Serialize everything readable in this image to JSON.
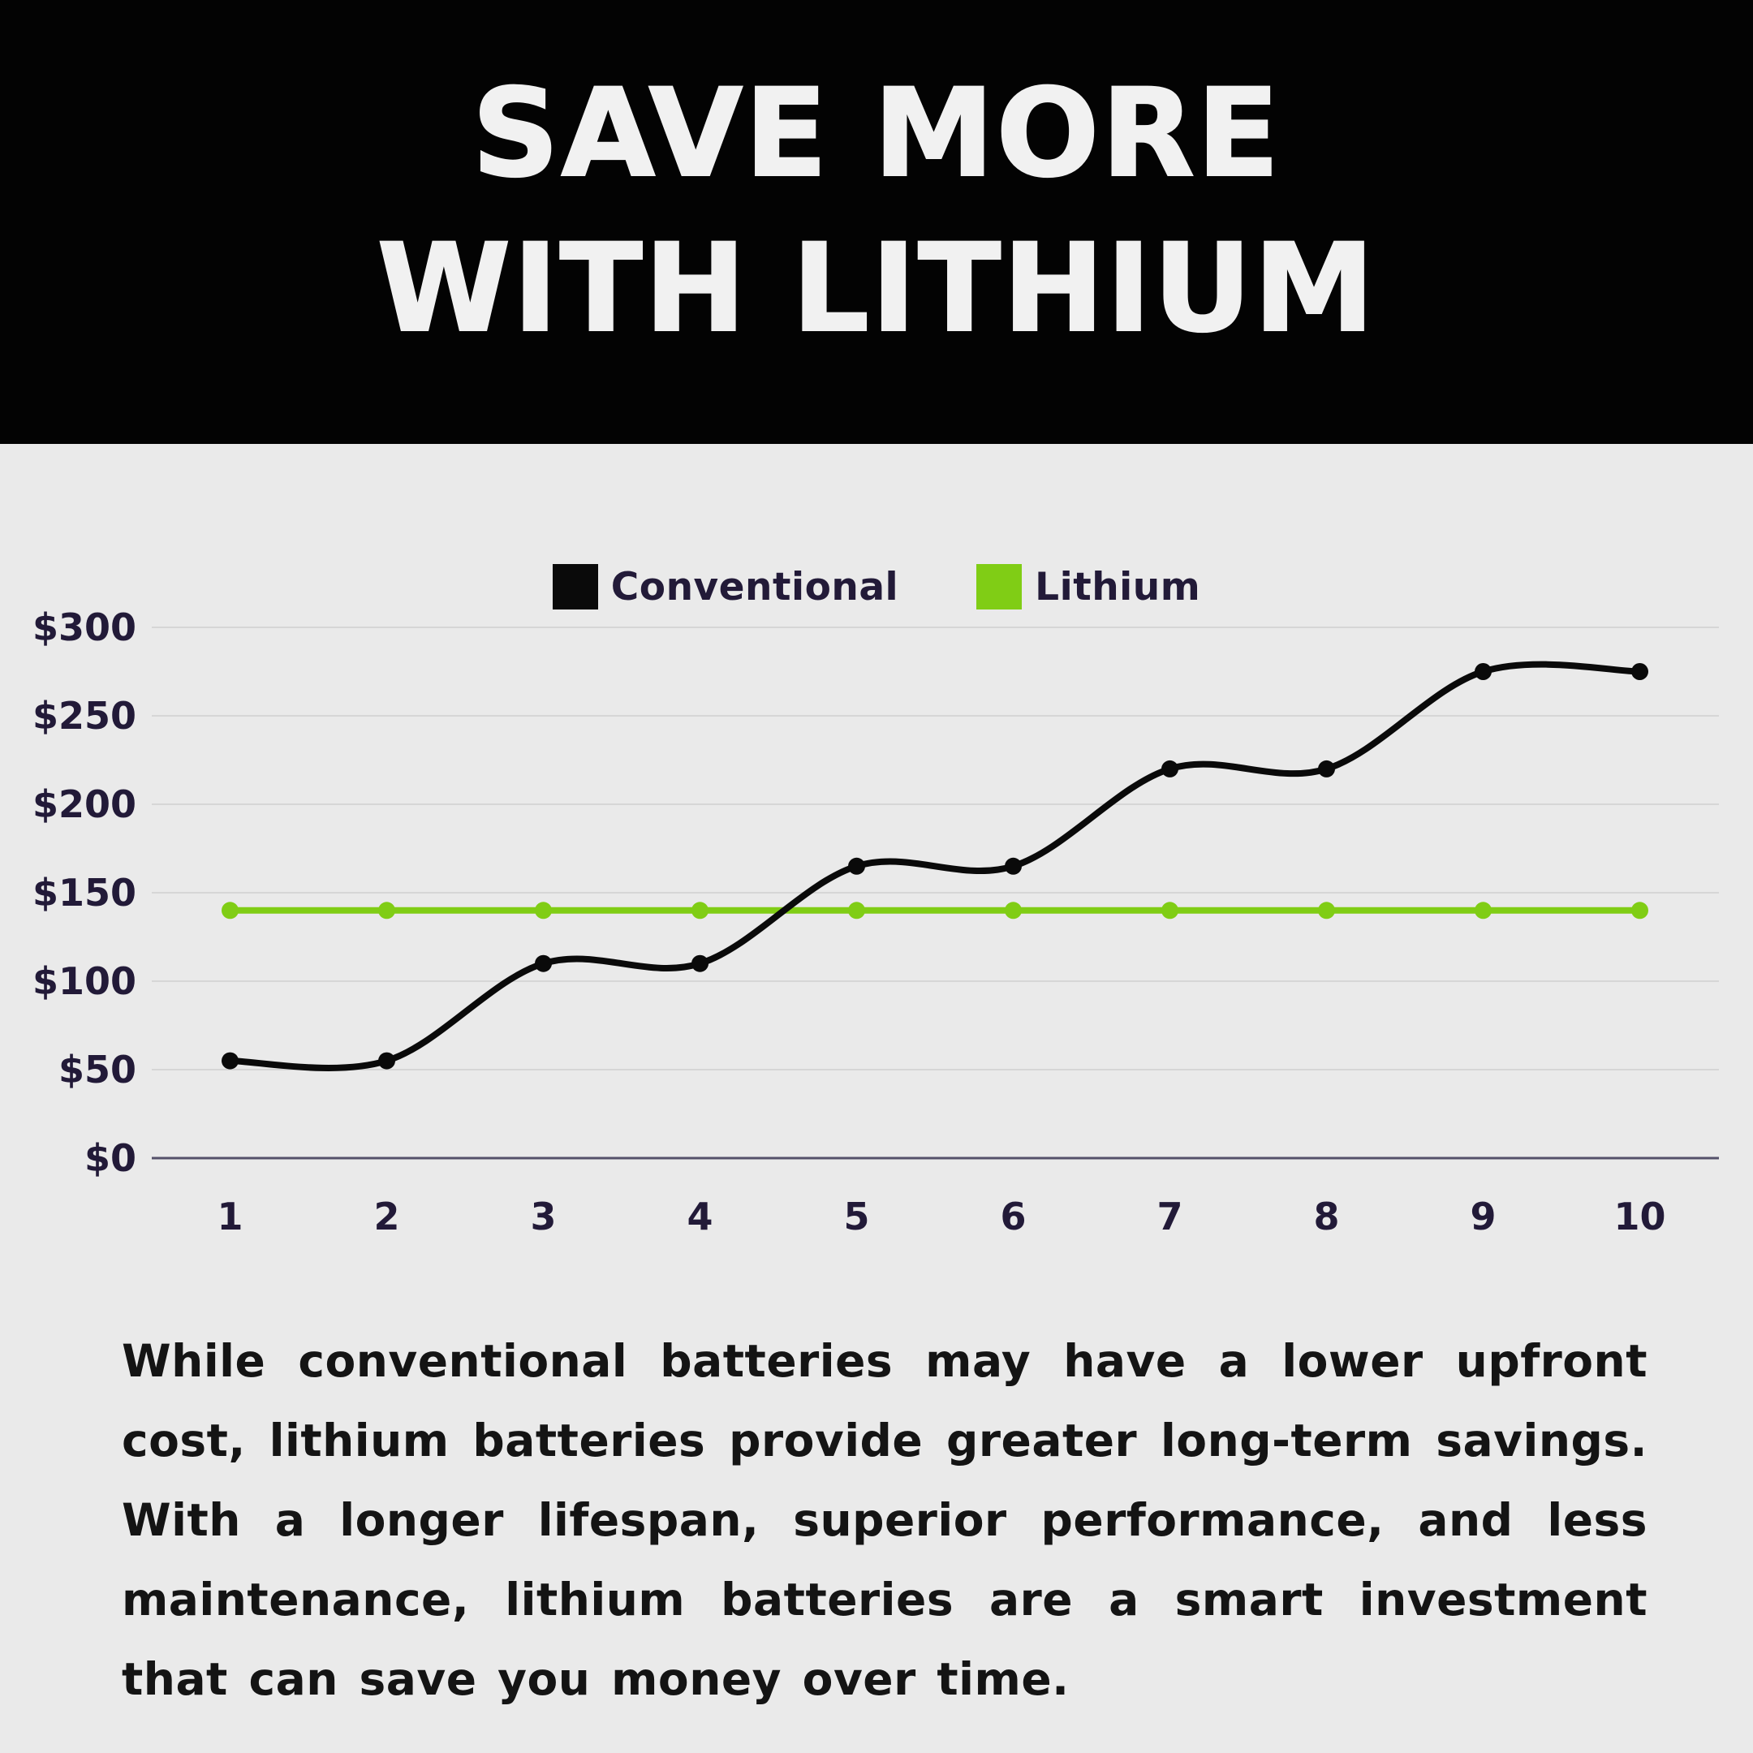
{
  "page": {
    "colors": {
      "background": "#EAEAEA",
      "header_bg": "#030303",
      "title": "#F1F1F1",
      "axis_label": "#221A38",
      "body_text": "#141414",
      "gridline": "#D6D6D6",
      "axis_line": "#55516A"
    }
  },
  "header": {
    "title_line1": "SAVE MORE",
    "title_line2": "WITH LITHIUM"
  },
  "chart_data": {
    "type": "line",
    "x": [
      1,
      2,
      3,
      4,
      5,
      6,
      7,
      8,
      9,
      10
    ],
    "series": [
      {
        "name": "Conventional",
        "color": "#0A0A0A",
        "values": [
          55,
          55,
          110,
          110,
          165,
          165,
          220,
          220,
          275,
          275
        ]
      },
      {
        "name": "Lithium",
        "color": "#80CD15",
        "values": [
          140,
          140,
          140,
          140,
          140,
          140,
          140,
          140,
          140,
          140
        ]
      }
    ],
    "ytick_values": [
      0,
      50,
      100,
      150,
      200,
      250,
      300
    ],
    "ytick_labels": [
      "$0",
      "$50",
      "$100",
      "$150",
      "$200",
      "$250",
      "$300"
    ],
    "ylim": [
      0,
      300
    ],
    "grid": true,
    "smooth": true,
    "legend_position": "top-center",
    "title": "",
    "xlabel": "",
    "ylabel": ""
  },
  "body": {
    "paragraph": "While conventional batteries may have a lower upfront cost, lithium batteries provide greater long-term savings. With a longer lifespan, superior performance, and less maintenance, lithium batteries are a smart investment that can save you money over time."
  }
}
